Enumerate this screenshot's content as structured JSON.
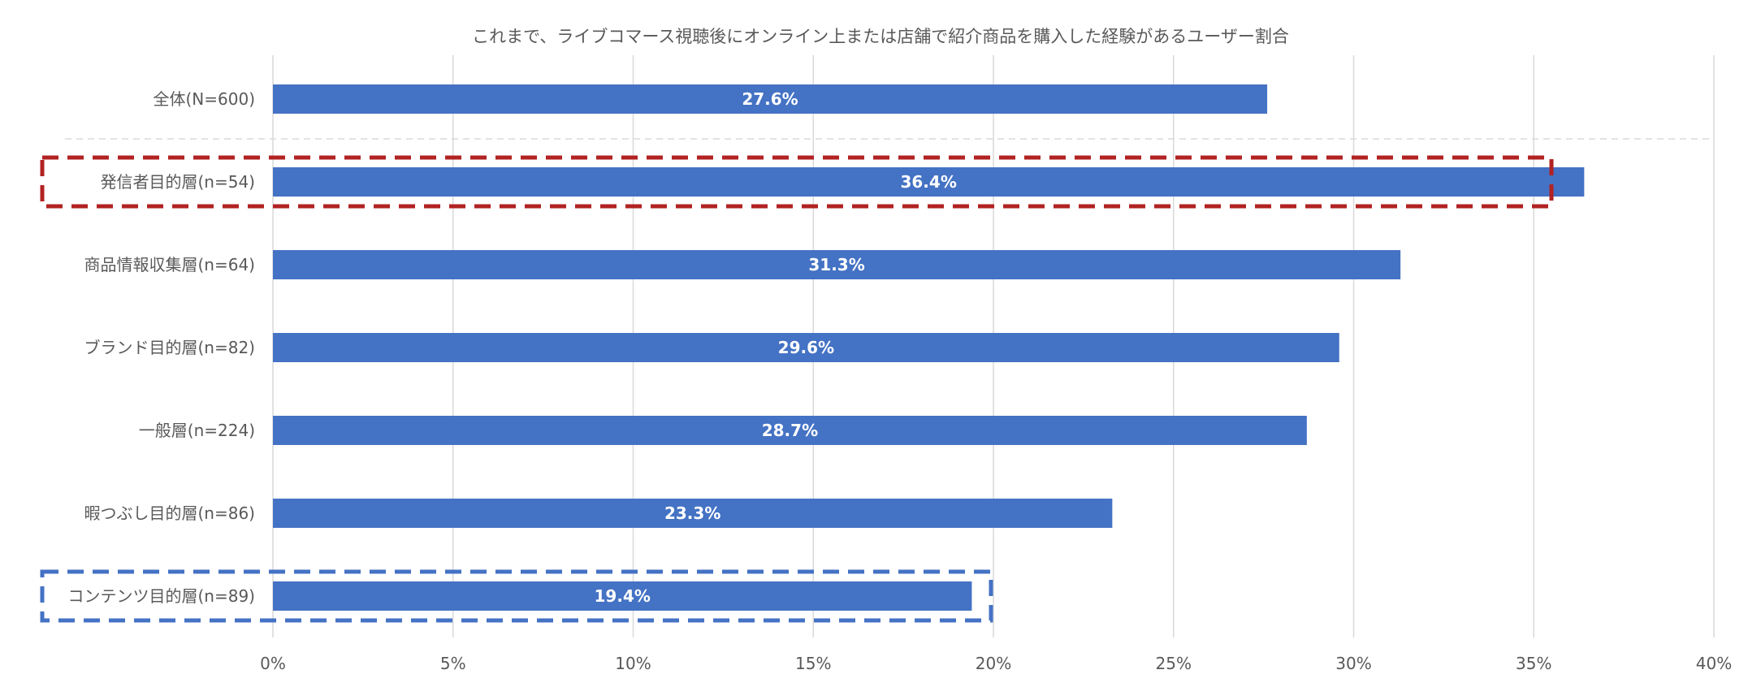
{
  "chart_data": {
    "type": "bar",
    "orientation": "horizontal",
    "title": "これまで、ライブコマース視聴後にオンライン上または店舗で紹介商品を購入した経験があるユーザー割合",
    "categories": [
      "全体(N=600)",
      "発信者目的層(n=54)",
      "商品情報収集層(n=64)",
      "ブランド目的層(n=82)",
      "一般層(n=224)",
      "暇つぶし目的層(n=86)",
      "コンテンツ目的層(n=89)"
    ],
    "values": [
      27.6,
      36.4,
      31.3,
      29.6,
      28.7,
      23.3,
      19.4
    ],
    "data_labels": [
      "27.6%",
      "36.4%",
      "31.3%",
      "29.6%",
      "28.7%",
      "23.3%",
      "19.4%"
    ],
    "xlim": [
      0,
      40
    ],
    "xticks": [
      0,
      5,
      10,
      15,
      20,
      25,
      30,
      35,
      40
    ],
    "xtick_labels": [
      "0%",
      "5%",
      "10%",
      "15%",
      "20%",
      "25%",
      "30%",
      "35%",
      "40%"
    ],
    "xlabel": "",
    "ylabel": "",
    "grid": true,
    "legend": "none",
    "bar_color": "#4472c4",
    "highlights": [
      {
        "category_index": 1,
        "style": "dashed-box",
        "color": "#b22222"
      },
      {
        "category_index": 6,
        "style": "dashed-box",
        "color": "#4472c4"
      }
    ],
    "separator_after_index": 0
  }
}
